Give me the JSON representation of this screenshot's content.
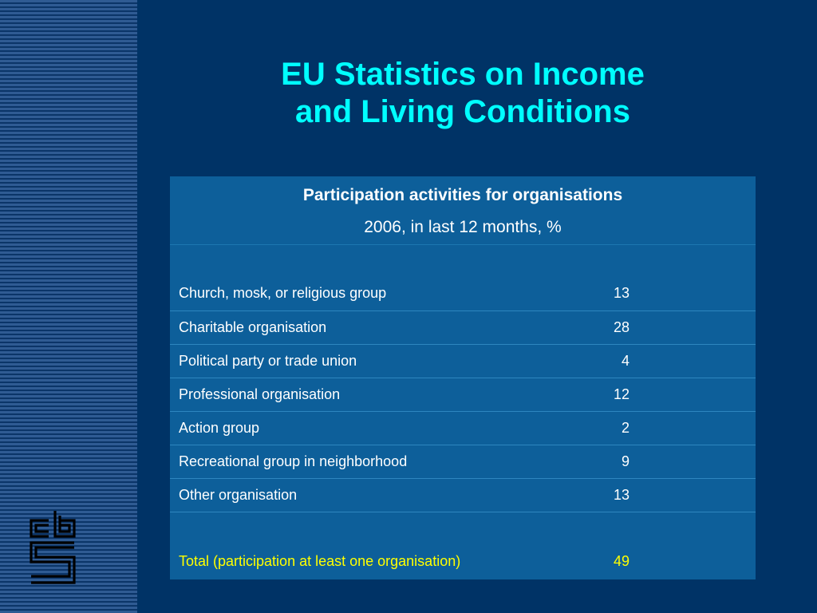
{
  "slide": {
    "title_line1": "EU Statistics on Income",
    "title_line2": "and Living Conditions"
  },
  "table": {
    "title": "Participation activities for organisations",
    "subtitle": "2006, in last 12 months, %",
    "rows": [
      {
        "label": "Church, mosk, or religious group",
        "value": "13"
      },
      {
        "label": "Charitable organisation",
        "value": "28"
      },
      {
        "label": "Political party or trade union",
        "value": "4"
      },
      {
        "label": "Professional organisation",
        "value": "12"
      },
      {
        "label": "Action group",
        "value": "2"
      },
      {
        "label": "Recreational group in neighborhood",
        "value": "9"
      },
      {
        "label": "Other organisation",
        "value": "13"
      }
    ],
    "total": {
      "label": "Total (participation at least one organisation)",
      "value": "49"
    }
  },
  "logo": {
    "icon": "cbs-logo-icon",
    "text": "cbs"
  },
  "colors": {
    "background": "#003366",
    "title": "#00ffff",
    "table_bg": "#0d5f9a",
    "total_text": "#ffff00"
  }
}
